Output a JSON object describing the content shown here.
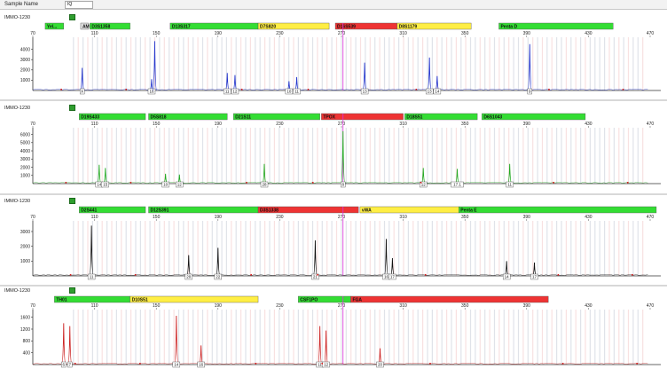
{
  "header": {
    "sample_name_label": "Sample Name",
    "sample_name_value": "IQ"
  },
  "colors": {
    "blue_trace": "#2233cc",
    "green_trace": "#22aa22",
    "black_trace": "#111111",
    "red_trace": "#cc2222",
    "marker_green": "#33dd33",
    "marker_yellow": "#ffee44",
    "marker_red": "#ee3333",
    "bin_grey": "#d8dce4",
    "bin_pink": "#f6dada",
    "cursor_magenta": "#dd33dd"
  },
  "panels": [
    {
      "title": "IMMO-1230",
      "trace": "blue",
      "x_ticks": [
        "70",
        "110",
        "150",
        "190",
        "230",
        "270",
        "310",
        "350",
        "390",
        "430",
        "470"
      ],
      "y_ticks": [
        "4000",
        "3000",
        "2000",
        "1000"
      ],
      "y_max": 5000,
      "markers": [
        {
          "label": "Yel...",
          "color": "green",
          "start": 78,
          "end": 90
        },
        {
          "label": "AMEL",
          "color": "grey",
          "start": 101,
          "end": 106
        },
        {
          "label": "D3S1358",
          "color": "green",
          "start": 107,
          "end": 133
        },
        {
          "label": "D13S317",
          "color": "green",
          "start": 159,
          "end": 216
        },
        {
          "label": "D7S820",
          "color": "yellow",
          "start": 216,
          "end": 262
        },
        {
          "label": "D16S539",
          "color": "red",
          "start": 266,
          "end": 306
        },
        {
          "label": "D8S1179",
          "color": "yellow",
          "start": 306,
          "end": 354
        },
        {
          "label": "Penta D",
          "color": "green",
          "start": 372,
          "end": 446
        }
      ],
      "peaks": [
        {
          "bp": 102,
          "h": 2200,
          "label": "X"
        },
        {
          "bp": 147,
          "h": 1100,
          "label": "16"
        },
        {
          "bp": 149,
          "h": 4800,
          "label": ""
        },
        {
          "bp": 196,
          "h": 1700,
          "label": "11"
        },
        {
          "bp": 201,
          "h": 1500,
          "label": "12"
        },
        {
          "bp": 236,
          "h": 900,
          "label": "10"
        },
        {
          "bp": 241,
          "h": 1300,
          "label": "11"
        },
        {
          "bp": 285,
          "h": 2700,
          "label": "13"
        },
        {
          "bp": 327,
          "h": 3200,
          "label": "13"
        },
        {
          "bp": 332,
          "h": 1400,
          "label": "14"
        },
        {
          "bp": 392,
          "h": 4500,
          "label": "9"
        }
      ]
    },
    {
      "title": "IMMO-1230",
      "trace": "green",
      "x_ticks": [
        "70",
        "110",
        "150",
        "190",
        "230",
        "270",
        "310",
        "350",
        "390",
        "430",
        "470"
      ],
      "y_ticks": [
        "6000",
        "5000",
        "4000",
        "3000",
        "2000",
        "1000"
      ],
      "y_max": 6600,
      "markers": [
        {
          "label": "D19S433",
          "color": "green",
          "start": 100,
          "end": 143
        },
        {
          "label": "D5S818",
          "color": "green",
          "start": 145,
          "end": 196
        },
        {
          "label": "D21S11",
          "color": "green",
          "start": 200,
          "end": 256
        },
        {
          "label": "TPOX",
          "color": "red",
          "start": 257,
          "end": 310
        },
        {
          "label": "D18S51",
          "color": "green",
          "start": 311,
          "end": 358
        },
        {
          "label": "D6S1043",
          "color": "green",
          "start": 361,
          "end": 428
        }
      ],
      "peaks": [
        {
          "bp": 113,
          "h": 2300,
          "label": "14"
        },
        {
          "bp": 117,
          "h": 1900,
          "label": "15"
        },
        {
          "bp": 156,
          "h": 1200,
          "label": "10"
        },
        {
          "bp": 165,
          "h": 1100,
          "label": "12"
        },
        {
          "bp": 220,
          "h": 2400,
          "label": "28"
        },
        {
          "bp": 271,
          "h": 6400,
          "label": "8"
        },
        {
          "bp": 323,
          "h": 1900,
          "label": "12"
        },
        {
          "bp": 345,
          "h": 1800,
          "label": "17.1"
        },
        {
          "bp": 379,
          "h": 2400,
          "label": "11"
        }
      ]
    },
    {
      "title": "IMMO-1230",
      "trace": "black",
      "x_ticks": [
        "70",
        "110",
        "150",
        "190",
        "230",
        "270",
        "310",
        "350",
        "390",
        "430",
        "470"
      ],
      "y_ticks": [
        "3000",
        "2000",
        "1000"
      ],
      "y_max": 3600,
      "markers": [
        {
          "label": "D2S441",
          "color": "green",
          "start": 100,
          "end": 143
        },
        {
          "label": "D12S391",
          "color": "green",
          "start": 145,
          "end": 216
        },
        {
          "label": "D3S1338",
          "color": "red",
          "start": 216,
          "end": 281
        },
        {
          "label": "vWA",
          "color": "yellow",
          "start": 282,
          "end": 346
        },
        {
          "label": "Penta E",
          "color": "green",
          "start": 346,
          "end": 474
        }
      ],
      "peaks": [
        {
          "bp": 108,
          "h": 3400,
          "label": "11"
        },
        {
          "bp": 171,
          "h": 1400,
          "label": "20"
        },
        {
          "bp": 190,
          "h": 1900,
          "label": "22"
        },
        {
          "bp": 253,
          "h": 2400,
          "label": "21"
        },
        {
          "bp": 299,
          "h": 2500,
          "label": "16"
        },
        {
          "bp": 303,
          "h": 1200,
          "label": "17"
        },
        {
          "bp": 377,
          "h": 1000,
          "label": "14"
        },
        {
          "bp": 395,
          "h": 900,
          "label": "17"
        }
      ]
    },
    {
      "title": "IMMO-1230",
      "trace": "red",
      "x_ticks": [
        "70",
        "110",
        "150",
        "190",
        "230",
        "270",
        "310",
        "350",
        "390",
        "430",
        "470"
      ],
      "y_ticks": [
        "1600",
        "1200",
        "800",
        "400"
      ],
      "y_max": 1800,
      "markers": [
        {
          "label": "TH01",
          "color": "green",
          "start": 84,
          "end": 133
        },
        {
          "label": "D10S51",
          "color": "yellow",
          "start": 133,
          "end": 216
        },
        {
          "label": "CSF1PO",
          "color": "green",
          "start": 242,
          "end": 276
        },
        {
          "label": "FGA",
          "color": "red",
          "start": 276,
          "end": 404
        }
      ],
      "peaks": [
        {
          "bp": 90,
          "h": 1400,
          "label": "6"
        },
        {
          "bp": 94,
          "h": 1300,
          "label": "7"
        },
        {
          "bp": 163,
          "h": 1650,
          "label": "14"
        },
        {
          "bp": 179,
          "h": 650,
          "label": "16"
        },
        {
          "bp": 256,
          "h": 1300,
          "label": "11"
        },
        {
          "bp": 260,
          "h": 1150,
          "label": "12"
        },
        {
          "bp": 295,
          "h": 550,
          "label": "20"
        }
      ]
    }
  ]
}
